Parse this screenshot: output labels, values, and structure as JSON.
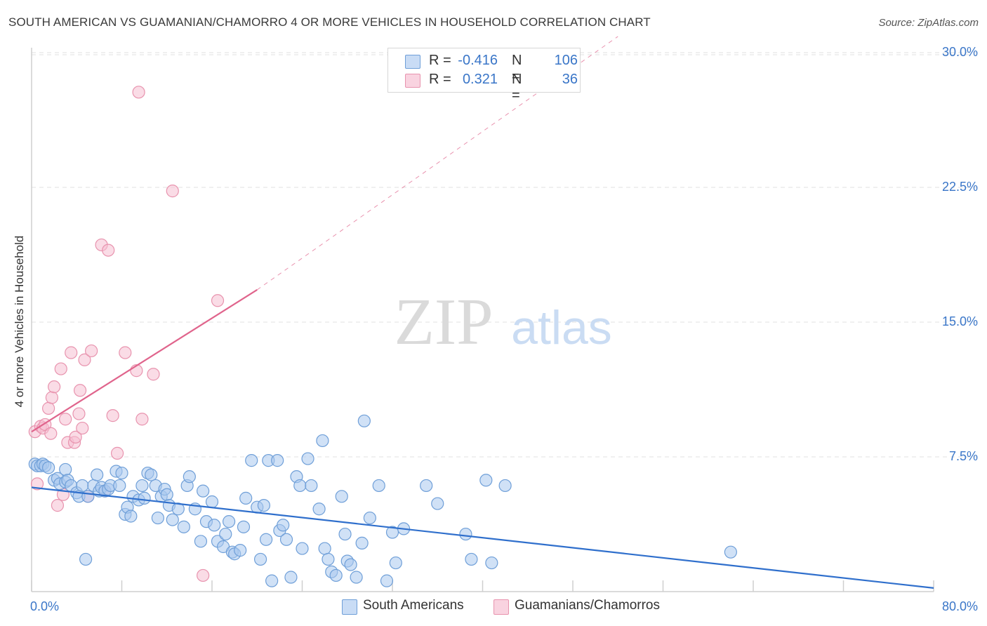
{
  "title": "SOUTH AMERICAN VS GUAMANIAN/CHAMORRO 4 OR MORE VEHICLES IN HOUSEHOLD CORRELATION CHART",
  "source": "Source: ZipAtlas.com",
  "watermark": {
    "zip": "ZIP",
    "atlas": "atlas"
  },
  "colors": {
    "blue_fill": "#a9c8ef",
    "blue_stroke": "#6f9fd8",
    "blue_line": "#2f6fcc",
    "pink_fill": "#f6bfd1",
    "pink_stroke": "#e893ae",
    "pink_line": "#e0648c",
    "tick_text": "#3a76c8",
    "grid": "#e2e2e2"
  },
  "legend": {
    "r_label": "R =",
    "n_label": "N =",
    "rows": [
      {
        "r": "-0.416",
        "n": "106",
        "color": "#a9c8ef",
        "stroke": "#6f9fd8"
      },
      {
        "r": "0.321",
        "n": "36",
        "color": "#f6bfd1",
        "stroke": "#e893ae"
      }
    ]
  },
  "bottom_legend": [
    {
      "label": "South Americans",
      "color": "#a9c8ef",
      "stroke": "#6f9fd8"
    },
    {
      "label": "Guamanians/Chamorros",
      "color": "#f6bfd1",
      "stroke": "#e893ae"
    }
  ],
  "chart_data": {
    "type": "scatter",
    "title": "SOUTH AMERICAN VS GUAMANIAN/CHAMORRO 4 OR MORE VEHICLES IN HOUSEHOLD CORRELATION CHART",
    "xlabel": "",
    "ylabel": "4 or more Vehicles in Household",
    "xlim": [
      0,
      80
    ],
    "ylim": [
      0,
      31
    ],
    "x_tick_labels": [
      "0.0%",
      "80.0%"
    ],
    "y_ticks": [
      7.5,
      15.0,
      22.5,
      30.0
    ],
    "y_tick_labels": [
      "7.5%",
      "15.0%",
      "22.5%",
      "30.0%"
    ],
    "grid": true,
    "legend_position": "top-center",
    "series": [
      {
        "name": "South Americans",
        "color": "#a9c8ef",
        "points": [
          [
            0.3,
            7.1
          ],
          [
            0.5,
            7.0
          ],
          [
            0.8,
            7.0
          ],
          [
            1.0,
            7.1
          ],
          [
            1.2,
            7.0
          ],
          [
            1.5,
            6.9
          ],
          [
            2.0,
            6.2
          ],
          [
            2.3,
            6.3
          ],
          [
            2.5,
            6.0
          ],
          [
            3.0,
            6.1
          ],
          [
            3.0,
            6.8
          ],
          [
            3.2,
            6.2
          ],
          [
            3.5,
            5.9
          ],
          [
            4.0,
            5.5
          ],
          [
            4.2,
            5.3
          ],
          [
            4.5,
            5.9
          ],
          [
            4.8,
            1.8
          ],
          [
            5.0,
            5.3
          ],
          [
            5.5,
            5.9
          ],
          [
            5.8,
            6.5
          ],
          [
            6.0,
            5.6
          ],
          [
            6.2,
            5.8
          ],
          [
            6.5,
            5.6
          ],
          [
            6.8,
            5.7
          ],
          [
            7.0,
            5.9
          ],
          [
            7.5,
            6.7
          ],
          [
            7.8,
            5.9
          ],
          [
            8.0,
            6.6
          ],
          [
            8.3,
            4.3
          ],
          [
            8.5,
            4.7
          ],
          [
            8.8,
            4.2
          ],
          [
            9.0,
            5.3
          ],
          [
            9.5,
            5.1
          ],
          [
            9.8,
            5.9
          ],
          [
            10.0,
            5.2
          ],
          [
            10.3,
            6.6
          ],
          [
            10.6,
            6.5
          ],
          [
            11.0,
            5.9
          ],
          [
            11.2,
            4.1
          ],
          [
            11.5,
            5.3
          ],
          [
            11.8,
            5.7
          ],
          [
            12.0,
            5.4
          ],
          [
            12.2,
            4.8
          ],
          [
            12.5,
            4.0
          ],
          [
            13.0,
            4.6
          ],
          [
            13.5,
            3.6
          ],
          [
            13.8,
            5.9
          ],
          [
            14.0,
            6.4
          ],
          [
            14.5,
            4.6
          ],
          [
            15.0,
            2.8
          ],
          [
            15.2,
            5.6
          ],
          [
            15.5,
            3.9
          ],
          [
            16.0,
            5.0
          ],
          [
            16.2,
            3.7
          ],
          [
            16.5,
            2.8
          ],
          [
            17.0,
            2.5
          ],
          [
            17.2,
            3.2
          ],
          [
            17.5,
            3.9
          ],
          [
            17.8,
            2.2
          ],
          [
            18.0,
            2.1
          ],
          [
            18.5,
            2.3
          ],
          [
            18.8,
            3.6
          ],
          [
            19.0,
            5.2
          ],
          [
            19.5,
            7.3
          ],
          [
            20.0,
            4.7
          ],
          [
            20.3,
            1.8
          ],
          [
            20.6,
            4.8
          ],
          [
            20.8,
            2.9
          ],
          [
            21.0,
            7.3
          ],
          [
            21.3,
            0.6
          ],
          [
            21.8,
            7.3
          ],
          [
            22.0,
            3.4
          ],
          [
            22.3,
            3.7
          ],
          [
            22.6,
            2.9
          ],
          [
            23.0,
            0.8
          ],
          [
            23.5,
            6.4
          ],
          [
            23.8,
            5.9
          ],
          [
            24.0,
            2.4
          ],
          [
            24.5,
            7.4
          ],
          [
            24.8,
            5.9
          ],
          [
            25.5,
            4.6
          ],
          [
            25.8,
            8.4
          ],
          [
            26.0,
            2.4
          ],
          [
            26.3,
            1.8
          ],
          [
            26.6,
            1.1
          ],
          [
            27.0,
            0.9
          ],
          [
            27.5,
            5.3
          ],
          [
            27.8,
            3.2
          ],
          [
            28.0,
            1.7
          ],
          [
            28.3,
            1.5
          ],
          [
            28.8,
            0.8
          ],
          [
            29.3,
            2.7
          ],
          [
            29.5,
            9.5
          ],
          [
            30.0,
            4.1
          ],
          [
            30.8,
            5.9
          ],
          [
            31.5,
            0.6
          ],
          [
            32.0,
            3.3
          ],
          [
            32.3,
            1.6
          ],
          [
            33.0,
            3.5
          ],
          [
            35.0,
            5.9
          ],
          [
            36.0,
            4.9
          ],
          [
            38.5,
            3.2
          ],
          [
            39.0,
            1.8
          ],
          [
            40.3,
            6.2
          ],
          [
            40.8,
            1.6
          ],
          [
            42.0,
            5.9
          ],
          [
            62.0,
            2.2
          ]
        ]
      },
      {
        "name": "Guamanians/Chamorros",
        "color": "#f6bfd1",
        "points": [
          [
            0.3,
            8.9
          ],
          [
            0.5,
            6.0
          ],
          [
            0.8,
            9.2
          ],
          [
            1.0,
            9.1
          ],
          [
            1.2,
            9.3
          ],
          [
            1.5,
            10.2
          ],
          [
            1.7,
            8.8
          ],
          [
            1.8,
            10.8
          ],
          [
            2.0,
            11.4
          ],
          [
            2.3,
            4.8
          ],
          [
            2.6,
            12.4
          ],
          [
            2.8,
            5.4
          ],
          [
            3.0,
            9.6
          ],
          [
            3.2,
            8.3
          ],
          [
            3.5,
            13.3
          ],
          [
            3.8,
            8.3
          ],
          [
            3.9,
            8.6
          ],
          [
            4.2,
            9.9
          ],
          [
            4.3,
            11.2
          ],
          [
            4.5,
            9.1
          ],
          [
            4.7,
            12.9
          ],
          [
            5.0,
            5.3
          ],
          [
            5.3,
            13.4
          ],
          [
            6.2,
            19.3
          ],
          [
            6.5,
            5.6
          ],
          [
            6.8,
            19.0
          ],
          [
            7.2,
            9.8
          ],
          [
            7.6,
            7.7
          ],
          [
            8.3,
            13.3
          ],
          [
            9.3,
            12.3
          ],
          [
            9.5,
            27.8
          ],
          [
            9.8,
            9.6
          ],
          [
            10.8,
            12.1
          ],
          [
            12.5,
            22.3
          ],
          [
            15.2,
            0.9
          ],
          [
            16.5,
            16.2
          ]
        ]
      }
    ],
    "trend_lines": [
      {
        "series": "South Americans",
        "x": [
          0,
          80
        ],
        "y": [
          5.8,
          0.2
        ]
      },
      {
        "series": "Guamanians/Chamorros",
        "x": [
          0,
          20
        ],
        "y": [
          8.9,
          16.8
        ],
        "dashed_extension_to": [
          52,
          30.9
        ]
      }
    ]
  }
}
